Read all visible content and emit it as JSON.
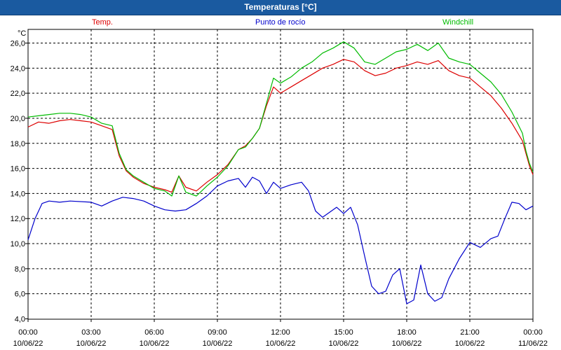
{
  "window": {
    "title": "Temperaturas [°C]"
  },
  "chart_data": {
    "type": "line",
    "title": "Temperaturas [°C]",
    "ylabel": "°C",
    "ylim": [
      4.0,
      26.0
    ],
    "grid": true,
    "legend_placement": "top",
    "y_ticks": [
      "4,0",
      "6,0",
      "8,0",
      "10,0",
      "12,0",
      "14,0",
      "16,0",
      "18,0",
      "20,0",
      "22,0",
      "24,0",
      "26,0"
    ],
    "x_range": [
      "2022-06-10 00:00",
      "2022-06-11 00:00"
    ],
    "x_ticks": [
      {
        "time": "00:00",
        "date": "10/06/22"
      },
      {
        "time": "03:00",
        "date": "10/06/22"
      },
      {
        "time": "06:00",
        "date": "10/06/22"
      },
      {
        "time": "09:00",
        "date": "10/06/22"
      },
      {
        "time": "12:00",
        "date": "10/06/22"
      },
      {
        "time": "15:00",
        "date": "10/06/22"
      },
      {
        "time": "18:00",
        "date": "10/06/22"
      },
      {
        "time": "21:00",
        "date": "10/06/22"
      },
      {
        "time": "00:00",
        "date": "11/06/22"
      }
    ],
    "series": [
      {
        "name": "Temp.",
        "color": "#dd0000",
        "points": [
          [
            "00:00",
            19.3
          ],
          [
            "00:30",
            19.7
          ],
          [
            "01:00",
            19.6
          ],
          [
            "01:30",
            19.8
          ],
          [
            "02:00",
            19.9
          ],
          [
            "02:30",
            19.8
          ],
          [
            "03:00",
            19.7
          ],
          [
            "03:30",
            19.4
          ],
          [
            "04:00",
            19.1
          ],
          [
            "04:20",
            17.0
          ],
          [
            "04:40",
            15.8
          ],
          [
            "05:00",
            15.3
          ],
          [
            "05:30",
            14.8
          ],
          [
            "06:00",
            14.5
          ],
          [
            "06:30",
            14.3
          ],
          [
            "06:50",
            14.1
          ],
          [
            "07:10",
            15.4
          ],
          [
            "07:30",
            14.5
          ],
          [
            "08:00",
            14.2
          ],
          [
            "08:30",
            14.9
          ],
          [
            "09:00",
            15.5
          ],
          [
            "09:30",
            16.3
          ],
          [
            "10:00",
            17.5
          ],
          [
            "10:20",
            17.8
          ],
          [
            "10:40",
            18.4
          ],
          [
            "11:00",
            19.2
          ],
          [
            "11:20",
            21.0
          ],
          [
            "11:40",
            22.5
          ],
          [
            "12:00",
            22.0
          ],
          [
            "12:30",
            22.5
          ],
          [
            "13:00",
            23.0
          ],
          [
            "13:30",
            23.5
          ],
          [
            "14:00",
            24.0
          ],
          [
            "14:30",
            24.3
          ],
          [
            "15:00",
            24.7
          ],
          [
            "15:30",
            24.5
          ],
          [
            "16:00",
            23.8
          ],
          [
            "16:30",
            23.4
          ],
          [
            "17:00",
            23.6
          ],
          [
            "17:30",
            24.0
          ],
          [
            "18:00",
            24.2
          ],
          [
            "18:30",
            24.5
          ],
          [
            "19:00",
            24.3
          ],
          [
            "19:30",
            24.6
          ],
          [
            "20:00",
            23.8
          ],
          [
            "20:30",
            23.4
          ],
          [
            "21:00",
            23.2
          ],
          [
            "21:30",
            22.5
          ],
          [
            "22:00",
            21.8
          ],
          [
            "22:30",
            20.8
          ],
          [
            "23:00",
            19.6
          ],
          [
            "23:30",
            18.2
          ],
          [
            "23:40",
            17.2
          ],
          [
            "23:50",
            16.2
          ],
          [
            "24:00",
            15.5
          ]
        ]
      },
      {
        "name": "Punto de rocío",
        "color": "#0000cc",
        "points": [
          [
            "00:00",
            10.3
          ],
          [
            "00:20",
            12.0
          ],
          [
            "00:40",
            13.2
          ],
          [
            "01:00",
            13.4
          ],
          [
            "01:30",
            13.3
          ],
          [
            "02:00",
            13.4
          ],
          [
            "03:00",
            13.3
          ],
          [
            "03:30",
            13.0
          ],
          [
            "04:00",
            13.4
          ],
          [
            "04:30",
            13.7
          ],
          [
            "05:00",
            13.6
          ],
          [
            "05:30",
            13.4
          ],
          [
            "06:00",
            13.0
          ],
          [
            "06:30",
            12.7
          ],
          [
            "07:00",
            12.6
          ],
          [
            "07:30",
            12.7
          ],
          [
            "08:00",
            13.2
          ],
          [
            "08:30",
            13.8
          ],
          [
            "09:00",
            14.6
          ],
          [
            "09:30",
            15.0
          ],
          [
            "10:00",
            15.2
          ],
          [
            "10:20",
            14.5
          ],
          [
            "10:40",
            15.3
          ],
          [
            "11:00",
            15.0
          ],
          [
            "11:20",
            14.0
          ],
          [
            "11:40",
            14.9
          ],
          [
            "12:00",
            14.4
          ],
          [
            "12:30",
            14.7
          ],
          [
            "13:00",
            14.9
          ],
          [
            "13:20",
            14.2
          ],
          [
            "13:40",
            12.6
          ],
          [
            "14:00",
            12.1
          ],
          [
            "14:20",
            12.5
          ],
          [
            "14:40",
            12.9
          ],
          [
            "15:00",
            12.4
          ],
          [
            "15:20",
            12.9
          ],
          [
            "15:40",
            11.5
          ],
          [
            "16:00",
            9.0
          ],
          [
            "16:20",
            6.6
          ],
          [
            "16:40",
            6.0
          ],
          [
            "17:00",
            6.2
          ],
          [
            "17:20",
            7.5
          ],
          [
            "17:40",
            8.0
          ],
          [
            "18:00",
            5.2
          ],
          [
            "18:20",
            5.5
          ],
          [
            "18:40",
            8.3
          ],
          [
            "19:00",
            6.0
          ],
          [
            "19:20",
            5.4
          ],
          [
            "19:40",
            5.7
          ],
          [
            "20:00",
            7.2
          ],
          [
            "20:30",
            8.8
          ],
          [
            "21:00",
            10.1
          ],
          [
            "21:30",
            9.7
          ],
          [
            "22:00",
            10.4
          ],
          [
            "22:20",
            10.6
          ],
          [
            "22:40",
            12.0
          ],
          [
            "23:00",
            13.3
          ],
          [
            "23:20",
            13.2
          ],
          [
            "23:40",
            12.7
          ],
          [
            "24:00",
            13.0
          ]
        ]
      },
      {
        "name": "Windchill",
        "color": "#00bb00",
        "points": [
          [
            "00:00",
            20.1
          ],
          [
            "00:30",
            20.2
          ],
          [
            "01:00",
            20.3
          ],
          [
            "01:30",
            20.4
          ],
          [
            "02:00",
            20.4
          ],
          [
            "02:30",
            20.3
          ],
          [
            "03:00",
            20.1
          ],
          [
            "03:30",
            19.6
          ],
          [
            "04:00",
            19.4
          ],
          [
            "04:20",
            17.2
          ],
          [
            "04:40",
            15.9
          ],
          [
            "05:00",
            15.4
          ],
          [
            "05:30",
            14.9
          ],
          [
            "06:00",
            14.4
          ],
          [
            "06:30",
            14.2
          ],
          [
            "06:50",
            13.8
          ],
          [
            "07:10",
            15.4
          ],
          [
            "07:30",
            14.1
          ],
          [
            "08:00",
            13.8
          ],
          [
            "08:30",
            14.6
          ],
          [
            "09:00",
            15.3
          ],
          [
            "09:30",
            16.2
          ],
          [
            "10:00",
            17.5
          ],
          [
            "10:20",
            17.7
          ],
          [
            "10:40",
            18.4
          ],
          [
            "11:00",
            19.2
          ],
          [
            "11:20",
            21.2
          ],
          [
            "11:40",
            23.2
          ],
          [
            "12:00",
            22.8
          ],
          [
            "12:30",
            23.3
          ],
          [
            "13:00",
            24.0
          ],
          [
            "13:30",
            24.5
          ],
          [
            "14:00",
            25.2
          ],
          [
            "14:30",
            25.6
          ],
          [
            "15:00",
            26.1
          ],
          [
            "15:30",
            25.6
          ],
          [
            "16:00",
            24.5
          ],
          [
            "16:30",
            24.3
          ],
          [
            "17:00",
            24.8
          ],
          [
            "17:30",
            25.3
          ],
          [
            "18:00",
            25.5
          ],
          [
            "18:30",
            25.9
          ],
          [
            "19:00",
            25.4
          ],
          [
            "19:30",
            26.0
          ],
          [
            "20:00",
            24.8
          ],
          [
            "20:30",
            24.5
          ],
          [
            "21:00",
            24.3
          ],
          [
            "21:30",
            23.6
          ],
          [
            "22:00",
            22.9
          ],
          [
            "22:30",
            21.9
          ],
          [
            "23:00",
            20.5
          ],
          [
            "23:30",
            18.8
          ],
          [
            "23:40",
            17.4
          ],
          [
            "23:50",
            16.4
          ],
          [
            "24:00",
            15.7
          ]
        ]
      }
    ]
  }
}
